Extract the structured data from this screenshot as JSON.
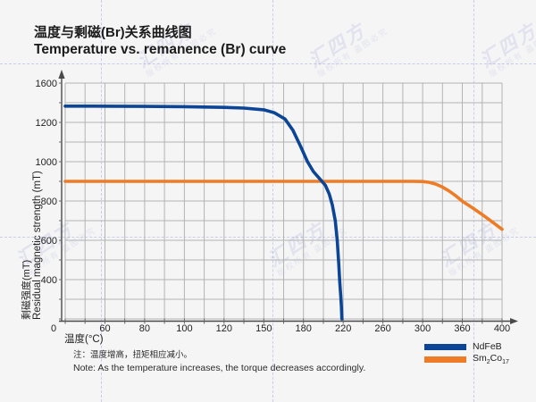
{
  "page": {
    "background": "#f5f5f6"
  },
  "header": {
    "title_cn": "温度与剩磁(Br)关系曲线图",
    "title_en": "Temperature vs. remanence (Br) curve"
  },
  "watermark": {
    "brand": "汇四方",
    "notice": "版权所有 盗图必究"
  },
  "note": {
    "cn": "注：温度增高，扭矩相应减小。",
    "en": "Note: As the temperature increases, the torque decreases accordingly."
  },
  "chart_data": {
    "type": "line",
    "title": "温度与剩磁(Br)关系曲线图 / Temperature vs. remanence (Br) curve",
    "xlabel": "温度(°C)",
    "ylabel_cn": "剩磁强度(mT)",
    "ylabel_en": "Residual magnetic strength (mT)",
    "origin_label": "0",
    "x_ticks": [
      0,
      60,
      80,
      100,
      120,
      150,
      180,
      220,
      260,
      300,
      360,
      400
    ],
    "y_ticks": [
      400,
      600,
      800,
      1000,
      1200,
      1600
    ],
    "ylim": [
      0,
      1600
    ],
    "grid": true,
    "grid_color": "#b3b3b3",
    "axis_color": "#4a4a4a",
    "tick_label_color": "#222222",
    "legend_position": "bottom-right",
    "series": [
      {
        "name": "Sm2Co17",
        "name_parts": [
          {
            "t": "Sm"
          },
          {
            "t": "2",
            "sub": true
          },
          {
            "t": "Co"
          },
          {
            "t": "17",
            "sub": true
          }
        ],
        "color": "#ee7c26",
        "points": [
          [
            0,
            900
          ],
          [
            60,
            900
          ],
          [
            120,
            900
          ],
          [
            180,
            900
          ],
          [
            240,
            900
          ],
          [
            290,
            900
          ],
          [
            300,
            899
          ],
          [
            310,
            895
          ],
          [
            320,
            886
          ],
          [
            330,
            871
          ],
          [
            340,
            851
          ],
          [
            350,
            827
          ],
          [
            360,
            799
          ],
          [
            370,
            766
          ],
          [
            380,
            731
          ],
          [
            390,
            694
          ],
          [
            400,
            656
          ]
        ]
      },
      {
        "name": "NdFeB",
        "name_parts": [
          {
            "t": "NdFeB"
          }
        ],
        "color": "#0d4596",
        "points": [
          [
            0,
            1365
          ],
          [
            40,
            1365
          ],
          [
            80,
            1363
          ],
          [
            100,
            1360
          ],
          [
            120,
            1353
          ],
          [
            135,
            1345
          ],
          [
            150,
            1328
          ],
          [
            158,
            1298
          ],
          [
            166,
            1235
          ],
          [
            172,
            1160
          ],
          [
            178,
            1075
          ],
          [
            184,
            1000
          ],
          [
            190,
            950
          ],
          [
            196,
            915
          ],
          [
            202,
            880
          ],
          [
            206,
            835
          ],
          [
            209,
            780
          ],
          [
            212,
            700
          ],
          [
            214,
            600
          ],
          [
            215.5,
            480
          ],
          [
            216.5,
            380
          ],
          [
            217.5,
            240
          ],
          [
            218.2,
            120
          ],
          [
            218.7,
            0
          ]
        ]
      }
    ]
  }
}
